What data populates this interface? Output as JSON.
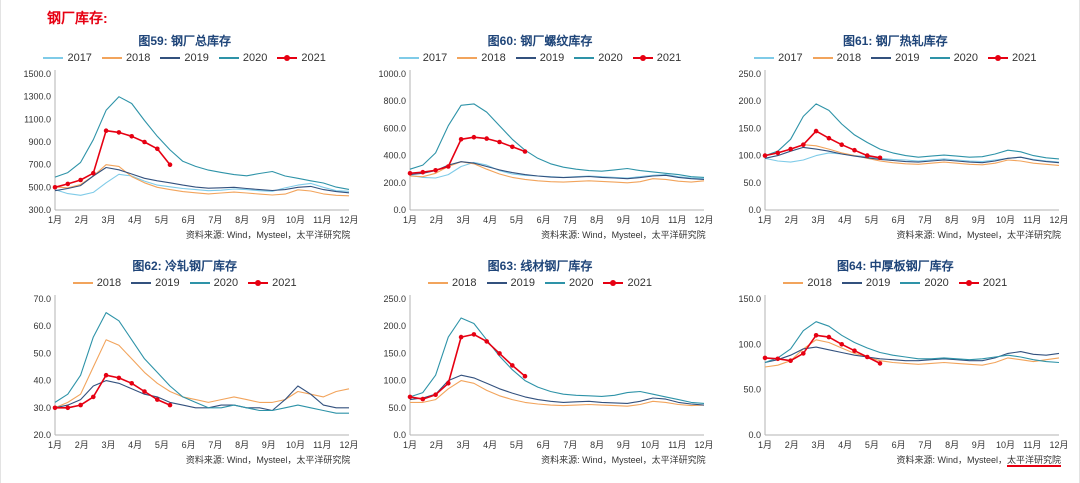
{
  "page": {
    "title": "钢厂库存:",
    "accent_color": "#e60012",
    "title_color": "#1f4579"
  },
  "chart_data": [
    {
      "figure": "图59",
      "title": "图59:  钢厂总库存",
      "type": "line",
      "source": "资料来源: Wind，Mysteel，太平洋研究院",
      "x_labels": [
        "1月",
        "2月",
        "3月",
        "4月",
        "5月",
        "6月",
        "7月",
        "8月",
        "9月",
        "10月",
        "11月",
        "12月"
      ],
      "ylim": [
        300,
        1500
      ],
      "y_ticks": [
        300,
        500,
        700,
        900,
        1100,
        1300,
        1500
      ],
      "series": [
        {
          "name": "2017",
          "color": "#7fcbe8",
          "values": [
            480,
            445,
            430,
            455,
            540,
            615,
            600,
            555,
            520,
            505,
            490,
            480,
            470,
            475,
            485,
            480,
            470,
            465,
            495,
            520,
            535,
            500,
            470,
            465
          ]
        },
        {
          "name": "2018",
          "color": "#f2a45c",
          "values": [
            505,
            495,
            525,
            600,
            700,
            685,
            595,
            540,
            500,
            480,
            462,
            452,
            442,
            450,
            458,
            450,
            440,
            432,
            440,
            478,
            468,
            442,
            430,
            425
          ]
        },
        {
          "name": "2019",
          "color": "#33517e",
          "values": [
            470,
            490,
            515,
            600,
            675,
            655,
            618,
            580,
            558,
            540,
            520,
            502,
            492,
            496,
            500,
            490,
            480,
            472,
            480,
            500,
            508,
            480,
            462,
            452
          ]
        },
        {
          "name": "2020",
          "color": "#2e93a8",
          "values": [
            590,
            630,
            720,
            920,
            1180,
            1300,
            1240,
            1090,
            950,
            830,
            730,
            685,
            652,
            632,
            612,
            602,
            622,
            640,
            600,
            580,
            558,
            538,
            502,
            482
          ]
        },
        {
          "name": "2021",
          "color": "#e60012",
          "marker": true,
          "values": [
            500,
            530,
            565,
            625,
            1000,
            985,
            950,
            900,
            840,
            700
          ]
        }
      ]
    },
    {
      "figure": "图60",
      "title": "图60:  钢厂螺纹库存",
      "type": "line",
      "source": "资料来源: Wind，Mysteel，太平洋研究院",
      "x_labels": [
        "1月",
        "2月",
        "3月",
        "4月",
        "5月",
        "6月",
        "7月",
        "8月",
        "9月",
        "10月",
        "11月",
        "12月"
      ],
      "ylim": [
        0,
        1000
      ],
      "y_ticks": [
        0,
        200,
        400,
        600,
        800,
        1000
      ],
      "series": [
        {
          "name": "2017",
          "color": "#7fcbe8",
          "values": [
            255,
            240,
            235,
            260,
            320,
            350,
            330,
            290,
            265,
            255,
            250,
            245,
            240,
            245,
            250,
            245,
            240,
            235,
            245,
            255,
            260,
            245,
            235,
            230
          ]
        },
        {
          "name": "2018",
          "color": "#f2a45c",
          "values": [
            250,
            245,
            270,
            320,
            355,
            340,
            300,
            265,
            240,
            225,
            215,
            208,
            205,
            210,
            215,
            210,
            205,
            200,
            208,
            230,
            225,
            212,
            205,
            215
          ]
        },
        {
          "name": "2019",
          "color": "#33517e",
          "values": [
            260,
            270,
            290,
            330,
            355,
            345,
            320,
            295,
            275,
            260,
            250,
            242,
            238,
            242,
            246,
            240,
            235,
            230,
            238,
            250,
            255,
            240,
            230,
            225
          ]
        },
        {
          "name": "2020",
          "color": "#2e93a8",
          "values": [
            300,
            330,
            420,
            620,
            770,
            780,
            720,
            620,
            520,
            440,
            380,
            340,
            315,
            300,
            290,
            285,
            295,
            305,
            290,
            280,
            270,
            260,
            245,
            240
          ]
        },
        {
          "name": "2021",
          "color": "#e60012",
          "marker": true,
          "values": [
            270,
            278,
            292,
            320,
            520,
            535,
            525,
            500,
            465,
            430
          ]
        }
      ]
    },
    {
      "figure": "图61",
      "title": "图61:  钢厂热轧库存",
      "type": "line",
      "source": "资料来源: Wind，Mysteel，太平洋研究院",
      "x_labels": [
        "1月",
        "2月",
        "3月",
        "4月",
        "5月",
        "6月",
        "7月",
        "8月",
        "9月",
        "10月",
        "11月",
        "12月"
      ],
      "ylim": [
        0,
        250
      ],
      "y_ticks": [
        0,
        50,
        100,
        150,
        200,
        250
      ],
      "series": [
        {
          "name": "2017",
          "color": "#7fcbe8",
          "values": [
            95,
            90,
            88,
            92,
            100,
            105,
            103,
            100,
            98,
            95,
            93,
            92,
            90,
            92,
            94,
            92,
            90,
            89,
            92,
            95,
            97,
            93,
            90,
            88
          ]
        },
        {
          "name": "2018",
          "color": "#f2a45c",
          "values": [
            100,
            105,
            112,
            120,
            118,
            112,
            105,
            100,
            95,
            90,
            87,
            85,
            84,
            86,
            88,
            86,
            84,
            83,
            86,
            92,
            90,
            86,
            84,
            82
          ]
        },
        {
          "name": "2019",
          "color": "#33517e",
          "values": [
            95,
            100,
            108,
            115,
            112,
            108,
            103,
            99,
            96,
            93,
            91,
            89,
            88,
            90,
            92,
            90,
            88,
            87,
            90,
            95,
            97,
            92,
            89,
            87
          ]
        },
        {
          "name": "2020",
          "color": "#2e93a8",
          "values": [
            100,
            108,
            130,
            172,
            195,
            183,
            158,
            138,
            124,
            112,
            105,
            100,
            97,
            99,
            101,
            99,
            97,
            98,
            103,
            110,
            107,
            100,
            96,
            94
          ]
        },
        {
          "name": "2021",
          "color": "#e60012",
          "marker": true,
          "values": [
            100,
            105,
            112,
            120,
            145,
            132,
            120,
            110,
            100,
            96
          ]
        }
      ]
    },
    {
      "figure": "图62",
      "title": "图62:  冷轧钢厂库存",
      "type": "line",
      "source": "资料来源: Wind，Mysteel，太平洋研究院",
      "x_labels": [
        "1月",
        "2月",
        "3月",
        "4月",
        "5月",
        "6月",
        "7月",
        "8月",
        "9月",
        "10月",
        "11月",
        "12月"
      ],
      "ylim": [
        20,
        70
      ],
      "y_ticks": [
        20,
        30,
        40,
        50,
        60,
        70
      ],
      "series": [
        {
          "name": "2018",
          "color": "#f2a45c",
          "values": [
            30,
            32,
            35,
            45,
            55,
            53,
            48,
            43,
            39,
            36,
            34,
            33,
            32,
            33,
            34,
            33,
            32,
            32,
            33,
            36,
            35,
            34,
            36,
            37
          ]
        },
        {
          "name": "2019",
          "color": "#33517e",
          "values": [
            30,
            31,
            33,
            38,
            40,
            39,
            37,
            35,
            34,
            32,
            31,
            30,
            30,
            31,
            31,
            30,
            30,
            29,
            33,
            38,
            35,
            31,
            30,
            30
          ]
        },
        {
          "name": "2020",
          "color": "#2e93a8",
          "values": [
            32,
            35,
            42,
            56,
            65,
            62,
            55,
            48,
            43,
            38,
            34,
            32,
            30,
            30,
            31,
            30,
            29,
            29,
            30,
            31,
            30,
            29,
            28,
            28
          ]
        },
        {
          "name": "2021",
          "color": "#e60012",
          "marker": true,
          "values": [
            30,
            30,
            31,
            34,
            42,
            41,
            39,
            36,
            33,
            31
          ]
        }
      ]
    },
    {
      "figure": "图63",
      "title": "图63:  线材钢厂库存",
      "type": "line",
      "source": "资料来源: Wind，Mysteel，太平洋研究院",
      "x_labels": [
        "1月",
        "2月",
        "3月",
        "4月",
        "5月",
        "6月",
        "7月",
        "8月",
        "9月",
        "10月",
        "11月",
        "12月"
      ],
      "ylim": [
        0,
        250
      ],
      "y_ticks": [
        0,
        50,
        100,
        150,
        200,
        250
      ],
      "series": [
        {
          "name": "2018",
          "color": "#f2a45c",
          "values": [
            60,
            60,
            65,
            85,
            100,
            95,
            82,
            72,
            65,
            60,
            57,
            55,
            54,
            55,
            56,
            55,
            54,
            53,
            56,
            62,
            60,
            56,
            54,
            55
          ]
        },
        {
          "name": "2019",
          "color": "#33517e",
          "values": [
            65,
            68,
            75,
            100,
            110,
            105,
            95,
            85,
            77,
            70,
            65,
            62,
            60,
            61,
            62,
            60,
            59,
            58,
            62,
            68,
            66,
            60,
            57,
            55
          ]
        },
        {
          "name": "2020",
          "color": "#2e93a8",
          "values": [
            70,
            78,
            110,
            180,
            215,
            205,
            175,
            145,
            120,
            100,
            88,
            80,
            75,
            73,
            72,
            71,
            73,
            78,
            80,
            75,
            70,
            65,
            60,
            58
          ]
        },
        {
          "name": "2021",
          "color": "#e60012",
          "marker": true,
          "values": [
            70,
            66,
            74,
            95,
            180,
            185,
            172,
            150,
            128,
            108
          ]
        }
      ]
    },
    {
      "figure": "图64",
      "title": "图64:  中厚板钢厂库存",
      "type": "line",
      "source": "资料来源: Wind，Mysteel，太平洋研究院",
      "underline_text": "太平洋研究院",
      "x_labels": [
        "1月",
        "2月",
        "3月",
        "4月",
        "5月",
        "6月",
        "7月",
        "8月",
        "9月",
        "10月",
        "11月",
        "12月"
      ],
      "ylim": [
        0,
        150
      ],
      "y_ticks": [
        0,
        50,
        100,
        150
      ],
      "series": [
        {
          "name": "2018",
          "color": "#f2a45c",
          "values": [
            75,
            77,
            82,
            95,
            105,
            102,
            96,
            90,
            86,
            82,
            80,
            79,
            78,
            79,
            80,
            79,
            78,
            77,
            80,
            85,
            83,
            81,
            83,
            85
          ]
        },
        {
          "name": "2019",
          "color": "#33517e",
          "values": [
            80,
            83,
            88,
            95,
            97,
            94,
            91,
            88,
            86,
            84,
            83,
            82,
            82,
            83,
            84,
            83,
            82,
            82,
            85,
            90,
            92,
            89,
            88,
            90
          ]
        },
        {
          "name": "2020",
          "color": "#2e93a8",
          "values": [
            80,
            85,
            95,
            115,
            125,
            120,
            110,
            102,
            96,
            91,
            88,
            86,
            84,
            84,
            85,
            84,
            83,
            84,
            86,
            88,
            86,
            83,
            81,
            80
          ]
        },
        {
          "name": "2021",
          "color": "#e60012",
          "marker": true,
          "values": [
            85,
            84,
            82,
            90,
            110,
            108,
            100,
            93,
            86,
            79
          ]
        }
      ]
    }
  ]
}
